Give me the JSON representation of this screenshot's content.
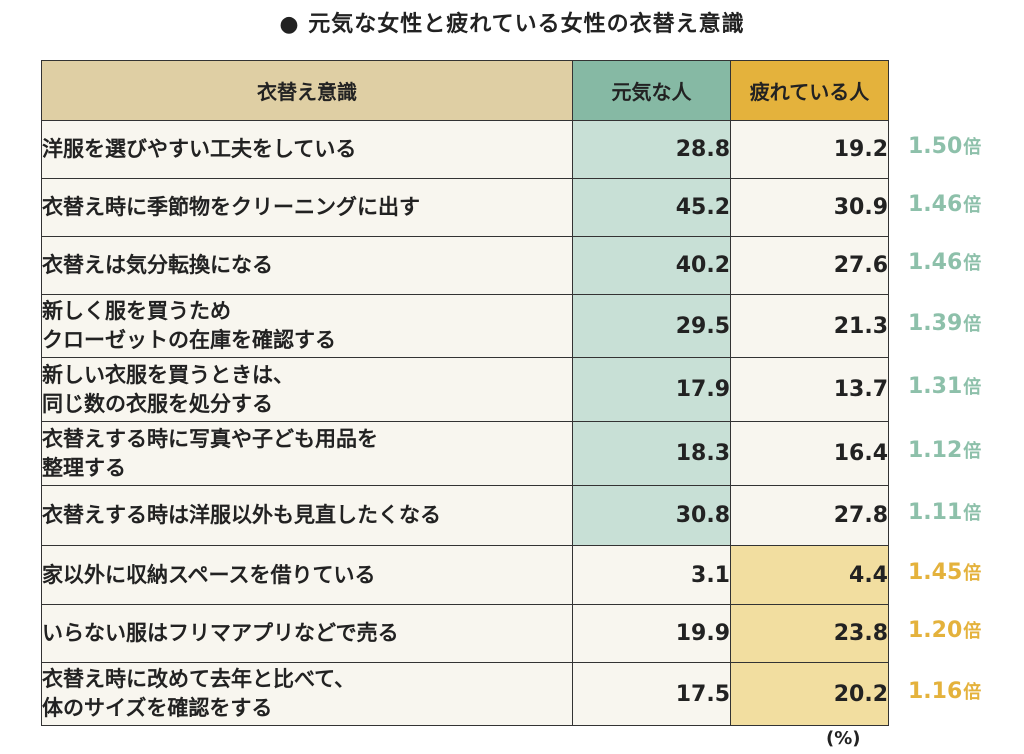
{
  "title": "● 元気な女性と疲れている女性の衣替え意識",
  "unit": "(%)",
  "ratio_suffix": "倍",
  "colors": {
    "header_label": "#dfcfa4",
    "header_genki": "#86b9a4",
    "header_tired": "#e4b23c",
    "highlight_genki": "#c8e0d6",
    "highlight_tired": "#f2dea0",
    "ratio_genki": "#8dc0aa",
    "ratio_tired": "#e4b23c"
  },
  "chart_data": {
    "type": "table",
    "title": "● 元気な女性と疲れている女性の衣替え意識",
    "columns": [
      "衣替え意識",
      "元気な人",
      "疲れている人"
    ],
    "rows": [
      {
        "label": "洋服を選びやすい工夫をしている",
        "genki": "28.8",
        "tired": "19.2",
        "ratio": "1.50",
        "higher": "genki"
      },
      {
        "label": "衣替え時に季節物をクリーニングに出す",
        "genki": "45.2",
        "tired": "30.9",
        "ratio": "1.46",
        "higher": "genki"
      },
      {
        "label": "衣替えは気分転換になる",
        "genki": "40.2",
        "tired": "27.6",
        "ratio": "1.46",
        "higher": "genki"
      },
      {
        "label": "新しく服を買うため\nクローゼットの在庫を確認する",
        "genki": "29.5",
        "tired": "21.3",
        "ratio": "1.39",
        "higher": "genki"
      },
      {
        "label": "新しい衣服を買うときは、\n同じ数の衣服を処分する",
        "genki": "17.9",
        "tired": "13.7",
        "ratio": "1.31",
        "higher": "genki"
      },
      {
        "label": "衣替えする時に写真や子ども用品を\n整理する",
        "genki": "18.3",
        "tired": "16.4",
        "ratio": "1.12",
        "higher": "genki"
      },
      {
        "label": "衣替えする時は洋服以外も見直したくなる",
        "genki": "30.8",
        "tired": "27.8",
        "ratio": "1.11",
        "higher": "genki"
      },
      {
        "label": "家以外に収納スペースを借りている",
        "genki": "3.1",
        "tired": "4.4",
        "ratio": "1.45",
        "higher": "tired"
      },
      {
        "label": "いらない服はフリマアプリなどで売る",
        "genki": "19.9",
        "tired": "23.8",
        "ratio": "1.20",
        "higher": "tired"
      },
      {
        "label": "衣替え時に改めて去年と比べて、\n体のサイズを確認をする",
        "genki": "17.5",
        "tired": "20.2",
        "ratio": "1.16",
        "higher": "tired"
      }
    ]
  }
}
